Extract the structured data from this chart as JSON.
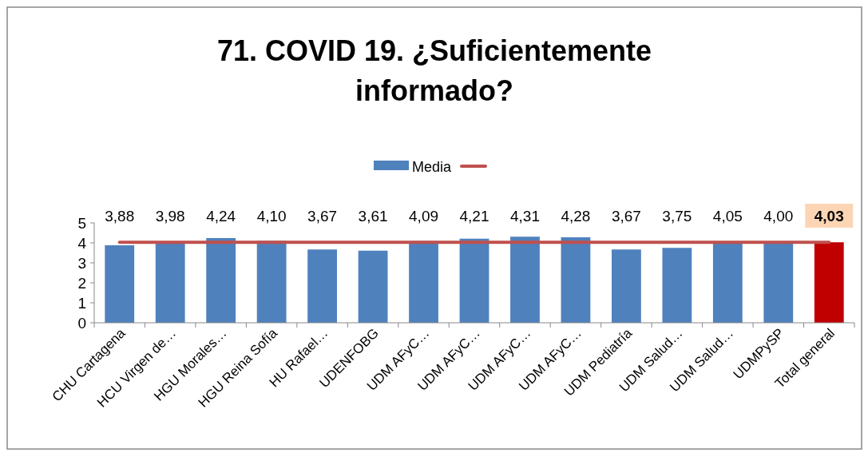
{
  "chart_data": {
    "type": "bar",
    "title": "71. COVID 19. ¿Suficientemente informado?",
    "categories": [
      "CHU Cartagena",
      "HCU Virgen de…",
      "HGU Morales…",
      "HGU Reina Sofía",
      "HU Rafael…",
      "UDENFOBG",
      "UDM AFyC…",
      "UDM AFyC…",
      "UDM AFyC…",
      "UDM AFyC…",
      "UDM Pediatría",
      "UDM Salud…",
      "UDM Salud…",
      "UDMPySP",
      "Total general"
    ],
    "series": [
      {
        "name": "Media",
        "color": "#4f81bd",
        "colors": [
          "#4f81bd",
          "#4f81bd",
          "#4f81bd",
          "#4f81bd",
          "#4f81bd",
          "#4f81bd",
          "#4f81bd",
          "#4f81bd",
          "#4f81bd",
          "#4f81bd",
          "#4f81bd",
          "#4f81bd",
          "#4f81bd",
          "#4f81bd",
          "#c00000"
        ],
        "values": [
          3.88,
          3.98,
          4.24,
          4.1,
          3.67,
          3.61,
          4.09,
          4.21,
          4.31,
          4.28,
          3.67,
          3.75,
          4.05,
          4.0,
          4.03
        ],
        "value_labels": [
          "3,88",
          "3,98",
          "4,24",
          "4,10",
          "3,67",
          "3,61",
          "4,09",
          "4,21",
          "4,31",
          "4,28",
          "3,67",
          "3,75",
          "4,05",
          "4,00",
          "4,03"
        ]
      },
      {
        "type": "line",
        "color": "#c0504d",
        "values": [
          4.03,
          4.03,
          4.03,
          4.03,
          4.03,
          4.03,
          4.03,
          4.03,
          4.03,
          4.03,
          4.03,
          4.03,
          4.03,
          4.03,
          4.03
        ]
      }
    ],
    "ylim": [
      0,
      5
    ],
    "yticks": [
      0,
      1,
      2,
      3,
      4,
      5
    ],
    "grid": false,
    "legend": "top"
  }
}
